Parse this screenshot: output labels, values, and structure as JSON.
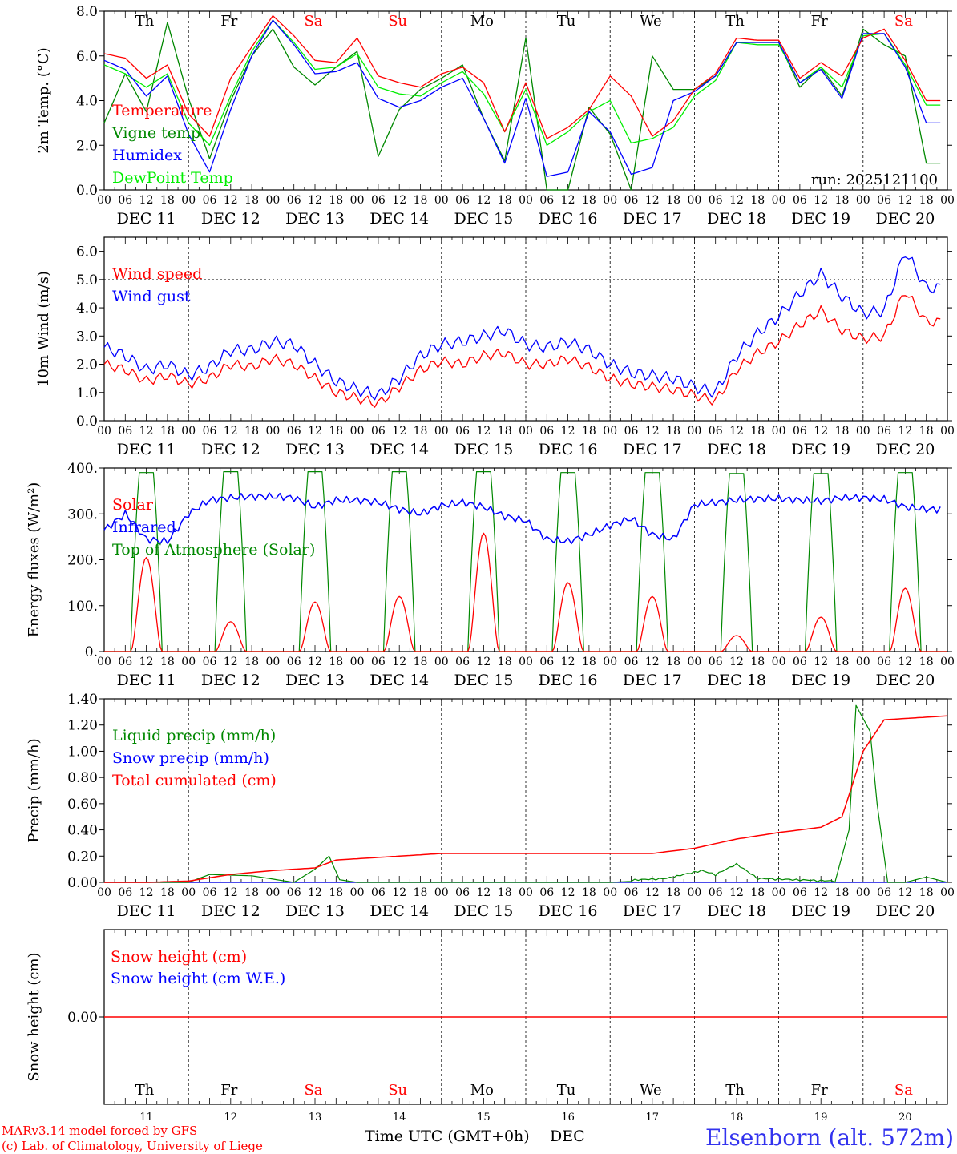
{
  "chart_data": [
    {
      "type": "line",
      "id": "temp",
      "ylabel": "2m Temp. (°C)",
      "ylim": [
        0,
        8
      ],
      "yticks": [
        "0.0",
        "2.0",
        "4.0",
        "6.0",
        "8.0"
      ],
      "annotation": "run: 2025121100",
      "legend": [
        "Temperature",
        "Vigne temp",
        "Humidex",
        "DewPoint Temp"
      ],
      "x_hours": [
        0,
        6,
        12,
        18,
        24,
        30,
        36,
        42,
        48,
        54,
        60,
        66,
        72,
        78,
        84,
        90,
        96,
        102,
        108,
        114,
        120,
        126,
        132,
        138,
        144,
        150,
        156,
        162,
        168,
        174,
        180,
        186,
        192,
        198,
        204,
        210,
        216,
        222,
        228,
        234
      ],
      "series": [
        {
          "name": "Temperature",
          "color": "#ff0000",
          "values": [
            6.1,
            5.9,
            5.0,
            5.6,
            3.4,
            2.4,
            5.0,
            6.4,
            7.8,
            6.9,
            5.8,
            5.7,
            6.8,
            5.1,
            4.8,
            4.6,
            5.2,
            5.5,
            4.8,
            2.6,
            4.8,
            2.3,
            2.8,
            3.6,
            5.1,
            4.2,
            2.4,
            3.1,
            4.5,
            5.2,
            6.8,
            6.7,
            6.7,
            5.0,
            5.7,
            5.1,
            6.8,
            7.2,
            5.8,
            4.0
          ]
        },
        {
          "name": "Vigne temp",
          "color": "#008800",
          "values": [
            3.0,
            5.2,
            3.5,
            7.5,
            4.1,
            1.4,
            4.0,
            6.0,
            7.2,
            5.5,
            4.7,
            5.5,
            6.2,
            1.5,
            3.6,
            4.5,
            5.0,
            5.6,
            3.2,
            1.3,
            6.8,
            0.0,
            0.0,
            3.7,
            2.5,
            0.0,
            6.0,
            4.5,
            4.5,
            5.1,
            6.6,
            6.6,
            6.6,
            4.6,
            5.5,
            4.2,
            7.2,
            6.5,
            6.0,
            1.2
          ]
        },
        {
          "name": "Humidex",
          "color": "#0000ff",
          "values": [
            5.8,
            5.4,
            4.2,
            5.1,
            2.5,
            0.8,
            3.6,
            6.0,
            7.6,
            6.5,
            5.2,
            5.3,
            5.7,
            4.1,
            3.7,
            4.0,
            4.6,
            5.0,
            3.2,
            1.2,
            4.1,
            0.6,
            0.8,
            3.5,
            2.6,
            0.7,
            1.0,
            4.0,
            4.4,
            5.1,
            6.6,
            6.6,
            6.6,
            4.8,
            5.4,
            4.1,
            7.0,
            7.0,
            5.5,
            3.0
          ]
        },
        {
          "name": "DewPoint Temp",
          "color": "#00ee00",
          "values": [
            5.6,
            5.2,
            4.6,
            5.2,
            3.0,
            2.0,
            4.2,
            6.2,
            7.6,
            6.6,
            5.4,
            5.5,
            6.1,
            4.6,
            4.3,
            4.2,
            4.8,
            5.3,
            4.3,
            2.6,
            4.5,
            2.0,
            2.6,
            3.5,
            4.0,
            2.1,
            2.3,
            2.8,
            4.2,
            4.9,
            6.6,
            6.5,
            6.5,
            4.8,
            5.5,
            4.6,
            6.9,
            7.0,
            5.6,
            3.8
          ]
        }
      ]
    },
    {
      "type": "line",
      "id": "wind",
      "ylabel": "10m Wind (m/s)",
      "ylim": [
        0,
        6.5
      ],
      "yticks": [
        "0.0",
        "1.0",
        "2.0",
        "3.0",
        "4.0",
        "5.0",
        "6.0"
      ],
      "legend": [
        "Wind speed",
        "Wind gust"
      ],
      "x_hours": [
        0,
        6,
        12,
        18,
        24,
        30,
        36,
        42,
        48,
        54,
        60,
        66,
        72,
        78,
        84,
        90,
        96,
        102,
        108,
        114,
        120,
        126,
        132,
        138,
        144,
        150,
        156,
        162,
        168,
        174,
        180,
        186,
        192,
        198,
        204,
        210,
        216,
        222,
        228,
        234
      ],
      "series": [
        {
          "name": "Wind speed",
          "color": "#ff0000",
          "values": [
            2.0,
            1.8,
            1.4,
            1.6,
            1.3,
            1.5,
            2.0,
            1.9,
            2.2,
            2.0,
            1.5,
            1.0,
            0.8,
            0.6,
            1.2,
            1.8,
            2.1,
            2.0,
            2.3,
            2.4,
            2.0,
            2.0,
            2.2,
            1.9,
            1.5,
            1.3,
            1.2,
            1.1,
            0.9,
            0.7,
            1.8,
            2.4,
            2.8,
            3.4,
            3.9,
            3.2,
            2.9,
            3.0,
            4.6,
            3.5
          ]
        },
        {
          "name": "Wind gust",
          "color": "#0000ff",
          "values": [
            2.6,
            2.3,
            1.8,
            2.0,
            1.6,
            1.9,
            2.5,
            2.5,
            2.8,
            2.7,
            2.0,
            1.4,
            1.1,
            0.9,
            1.5,
            2.3,
            2.7,
            2.8,
            3.0,
            3.2,
            2.7,
            2.6,
            2.8,
            2.5,
            2.0,
            1.7,
            1.6,
            1.5,
            1.2,
            1.0,
            2.3,
            3.1,
            3.7,
            4.5,
            5.2,
            4.4,
            3.8,
            3.9,
            6.0,
            4.7
          ]
        }
      ]
    },
    {
      "type": "line",
      "id": "flux",
      "ylabel": "Energy fluxes (W/m²)",
      "ylim": [
        0,
        400
      ],
      "yticks": [
        "0.",
        "100.",
        "200.",
        "300.",
        "400."
      ],
      "legend": [
        "Solar",
        "Infrared",
        "Top of Atmosphere (Solar)"
      ],
      "toa_peaks": [
        390,
        392,
        392,
        392,
        392,
        390,
        390,
        388,
        388,
        390
      ],
      "solar_peaks": [
        205,
        65,
        108,
        120,
        258,
        150,
        120,
        35,
        75,
        138
      ],
      "series": [
        {
          "name": "Infrared",
          "color": "#0000ff",
          "x_hours": [
            0,
            6,
            12,
            18,
            24,
            30,
            36,
            42,
            48,
            54,
            60,
            66,
            72,
            78,
            84,
            90,
            96,
            102,
            108,
            114,
            120,
            126,
            132,
            138,
            144,
            150,
            156,
            162,
            168,
            174,
            180,
            186,
            192,
            198,
            204,
            210,
            216,
            222,
            228,
            234
          ],
          "values": [
            265,
            300,
            245,
            240,
            300,
            330,
            335,
            338,
            338,
            335,
            315,
            330,
            330,
            325,
            310,
            300,
            318,
            325,
            315,
            295,
            285,
            245,
            240,
            255,
            275,
            290,
            255,
            245,
            320,
            325,
            330,
            333,
            333,
            330,
            328,
            335,
            335,
            332,
            315,
            310
          ]
        }
      ]
    },
    {
      "type": "line",
      "id": "precip",
      "ylabel": "Precip (mm/h)",
      "ylim": [
        0,
        1.4
      ],
      "yticks": [
        "0.00",
        "0.20",
        "0.40",
        "0.60",
        "0.80",
        "1.00",
        "1.20",
        "1.40"
      ],
      "legend": [
        "Liquid precip (mm/h)",
        "Snow precip (mm/h)",
        "Total cumulated (cm)"
      ],
      "series": [
        {
          "name": "Total cumulated (cm)",
          "color": "#ff0000",
          "x_hours": [
            0,
            12,
            24,
            36,
            48,
            54,
            60,
            66,
            72,
            84,
            96,
            108,
            120,
            132,
            144,
            156,
            168,
            180,
            192,
            204,
            210,
            216,
            222,
            228,
            234,
            240
          ],
          "values": [
            0.0,
            0.0,
            0.01,
            0.06,
            0.09,
            0.1,
            0.11,
            0.17,
            0.18,
            0.2,
            0.22,
            0.22,
            0.22,
            0.22,
            0.22,
            0.22,
            0.26,
            0.33,
            0.38,
            0.42,
            0.5,
            1.0,
            1.24,
            1.25,
            1.26,
            1.27
          ]
        },
        {
          "name": "Liquid precip (mm/h)",
          "color": "#008800",
          "x_hours": [
            0,
            24,
            30,
            42,
            54,
            60,
            64,
            67,
            72,
            96,
            144,
            160,
            170,
            174,
            180,
            186,
            208,
            212,
            214,
            218,
            220,
            223,
            228,
            234,
            240
          ],
          "values": [
            0.0,
            0.0,
            0.06,
            0.05,
            0.0,
            0.1,
            0.2,
            0.02,
            0.0,
            0.0,
            0.0,
            0.02,
            0.08,
            0.05,
            0.13,
            0.02,
            0.0,
            0.4,
            1.35,
            1.15,
            0.6,
            0.0,
            0.0,
            0.04,
            0.0
          ]
        }
      ]
    },
    {
      "type": "line",
      "id": "snow",
      "ylabel": "Snow height (cm)",
      "yticks": [
        "0.00"
      ],
      "legend": [
        "Snow height (cm)",
        "Snow height (cm W.E.)"
      ],
      "series": [
        {
          "name": "Snow height (cm)",
          "color": "#ff0000",
          "x_hours": [
            0,
            240
          ],
          "values": [
            0,
            0
          ]
        }
      ]
    }
  ],
  "axis": {
    "hour_ticks": [
      "00",
      "06",
      "12",
      "18"
    ],
    "end_tick": "00",
    "day_labels": [
      "DEC 11",
      "DEC 12",
      "DEC 13",
      "DEC 14",
      "DEC 15",
      "DEC 16",
      "DEC 17",
      "DEC 18",
      "DEC 19",
      "DEC 20"
    ],
    "weekdays": [
      {
        "label": "Th",
        "color": "#000000"
      },
      {
        "label": "Fr",
        "color": "#000000"
      },
      {
        "label": "Sa",
        "color": "#ff0000"
      },
      {
        "label": "Su",
        "color": "#ff0000"
      },
      {
        "label": "Mo",
        "color": "#000000"
      },
      {
        "label": "Tu",
        "color": "#000000"
      },
      {
        "label": "We",
        "color": "#000000"
      },
      {
        "label": "Th",
        "color": "#000000"
      },
      {
        "label": "Fr",
        "color": "#000000"
      },
      {
        "label": "Sa",
        "color": "#ff0000"
      }
    ],
    "day_numbers": [
      "11",
      "12",
      "13",
      "14",
      "15",
      "16",
      "17",
      "18",
      "19",
      "20"
    ],
    "xlabel": "Time UTC (GMT+0h)",
    "month": "DEC"
  },
  "footer": {
    "credit_line1": "MARv3.14 model forced by GFS",
    "credit_line2": "(c) Lab. of Climatology, University of Liege",
    "station": "Elsenborn (alt. 572m)"
  }
}
